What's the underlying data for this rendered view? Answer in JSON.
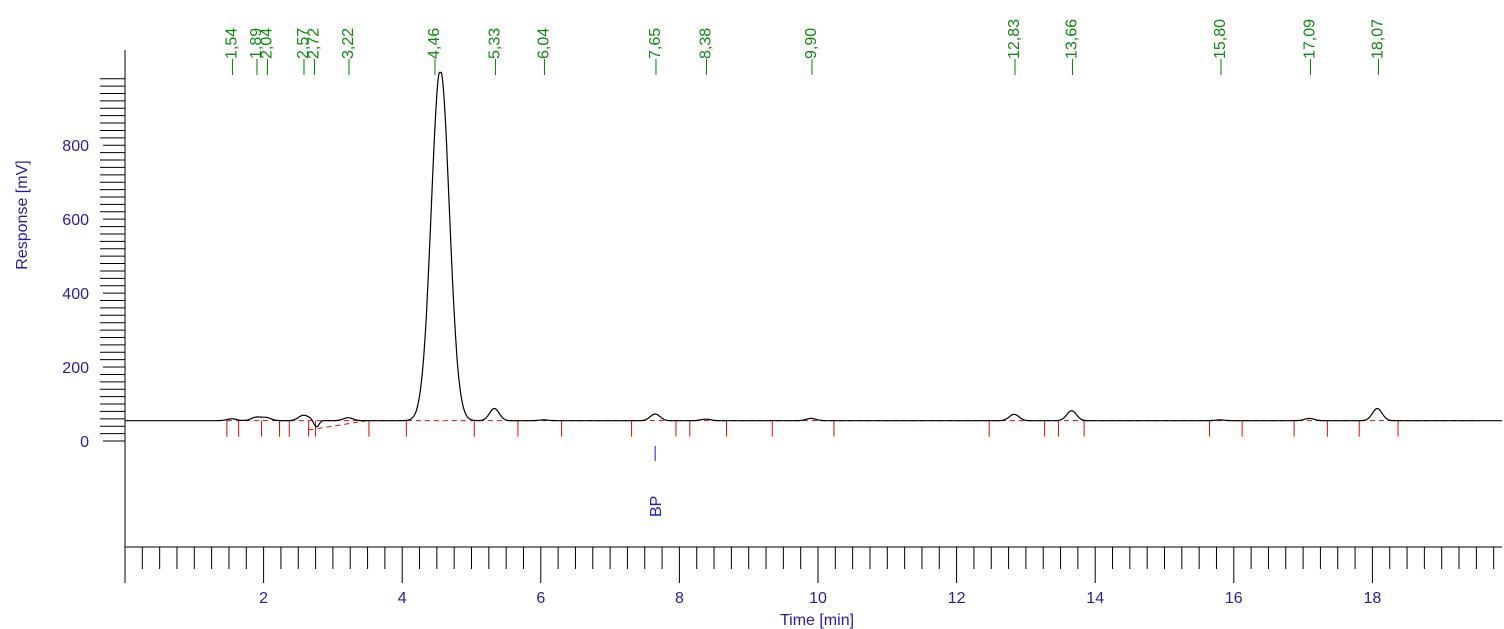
{
  "chart_data": {
    "type": "line",
    "xlabel": "Time [min]",
    "ylabel": "Response [mV]",
    "xlim": [
      0,
      20
    ],
    "ylim": [
      -400,
      1000
    ],
    "x_ticks": [
      2,
      4,
      6,
      8,
      10,
      12,
      14,
      16,
      18
    ],
    "y_ticks": [
      0,
      200,
      400,
      600,
      800
    ],
    "baseline": 55,
    "saturation": 997,
    "peaks": [
      {
        "label": "1,54",
        "rt": 1.54,
        "height": 5
      },
      {
        "label": "1,89",
        "rt": 1.89,
        "height": 9
      },
      {
        "label": "2,04",
        "rt": 2.04,
        "height": 8
      },
      {
        "label": "2,57",
        "rt": 2.57,
        "height": 14
      },
      {
        "label": "2,72",
        "rt": 2.72,
        "height": 6
      },
      {
        "label": "3,22",
        "rt": 3.22,
        "height": 8
      },
      {
        "label": "4,46",
        "rt": 4.46,
        "height": 950
      },
      {
        "label": "5,33",
        "rt": 5.33,
        "height": 33
      },
      {
        "label": "6,04",
        "rt": 6.04,
        "height": 2
      },
      {
        "label": "7,65",
        "rt": 7.65,
        "height": 18
      },
      {
        "label": "8,38",
        "rt": 8.38,
        "height": 4
      },
      {
        "label": "9,90",
        "rt": 9.9,
        "height": 6
      },
      {
        "label": "12,83",
        "rt": 12.83,
        "height": 17
      },
      {
        "label": "13,66",
        "rt": 13.66,
        "height": 27
      },
      {
        "label": "15,80",
        "rt": 15.8,
        "height": 2
      },
      {
        "label": "17,09",
        "rt": 17.09,
        "height": 6
      },
      {
        "label": "18,07",
        "rt": 18.07,
        "height": 33
      }
    ],
    "integration_marks": [
      1.47,
      1.64,
      1.97,
      2.23,
      2.37,
      2.65,
      2.75,
      3.52,
      4.06,
      5.04,
      5.67,
      6.3,
      7.31,
      7.95,
      8.15,
      8.68,
      9.34,
      10.23,
      12.47,
      13.27,
      13.47,
      13.84,
      15.65,
      16.12,
      16.87,
      17.35,
      17.81,
      18.37
    ],
    "annotations": [
      {
        "label": "BP",
        "x": 7.65
      }
    ],
    "colors": {
      "axis": "#2a1aa6",
      "trace": "#000000",
      "peak_label": "#0b8a0b",
      "baseline": "#d01010",
      "annotation": "#1a1ad6"
    }
  }
}
